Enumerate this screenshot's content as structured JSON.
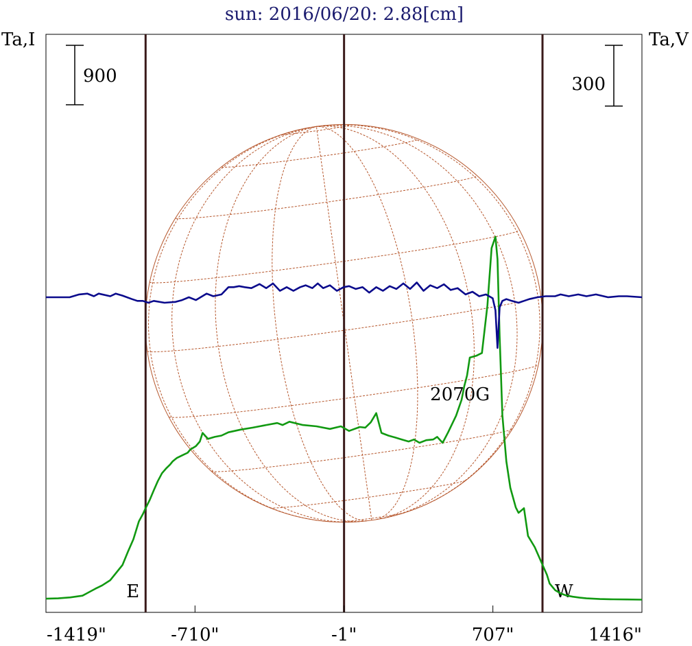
{
  "chart_data": {
    "type": "line",
    "title": "sun: 2016/06/20: 2.88[cm]",
    "left_axis_label": "Ta,I",
    "right_axis_label": "Ta,V",
    "x_unit": "arcsec",
    "x_tick_labels": [
      "-1419\"",
      "-710\"",
      "-1\"",
      "707\"",
      "1416\""
    ],
    "x_tick_values": [
      -1419,
      -710,
      -1,
      707,
      1416
    ],
    "xlim": [
      -1419,
      1416
    ],
    "scale_bars": [
      {
        "label": "900",
        "axis": "I",
        "value": 900
      },
      {
        "label": "300",
        "axis": "V",
        "value": 300
      }
    ],
    "vertical_markers": [
      {
        "label": "E",
        "x": -945
      },
      {
        "label": "",
        "x": -1
      },
      {
        "label": "W",
        "x": 943
      }
    ],
    "annotation": {
      "text": "2070G",
      "x": 800
    },
    "disk": {
      "center_x": -1,
      "radius": 945
    },
    "colors": {
      "stokes_I": "#119911",
      "stokes_V": "#0a0a8c",
      "markers": "#3a1a1a",
      "disk_grid": "#b5552a",
      "title": "#1a1a6e"
    },
    "series": [
      {
        "name": "",
        "key": "I",
        "x": [
          -1419,
          -1361,
          -1303,
          -1245,
          -1184,
          -1152,
          -1113,
          -1055,
          -1029,
          -1003,
          -977,
          -958,
          -945,
          -926,
          -906,
          -887,
          -867,
          -848,
          -829,
          -816,
          -797,
          -771,
          -745,
          -732,
          -706,
          -687,
          -674,
          -648,
          -616,
          -584,
          -551,
          -493,
          -435,
          -371,
          -319,
          -293,
          -261,
          -197,
          -132,
          -68,
          -16,
          23,
          74,
          100,
          126,
          152,
          177,
          210,
          242,
          274,
          306,
          332,
          358,
          390,
          423,
          442,
          468,
          494,
          532,
          558,
          571,
          584,
          597,
          629,
          655,
          681,
          701,
          719,
          729,
          739,
          752,
          771,
          790,
          816,
          829,
          855,
          874,
          906,
          945,
          964,
          977,
          1003,
          1029,
          1055,
          1087,
          1120,
          1152,
          1216,
          1281,
          1345,
          1416
        ],
        "y": [
          20,
          25,
          40,
          65,
          170,
          220,
          300,
          530,
          730,
          920,
          1190,
          1300,
          1390,
          1510,
          1660,
          1800,
          1920,
          1990,
          2050,
          2100,
          2150,
          2190,
          2230,
          2280,
          2330,
          2400,
          2530,
          2440,
          2470,
          2490,
          2540,
          2580,
          2610,
          2650,
          2680,
          2650,
          2700,
          2650,
          2630,
          2590,
          2630,
          2560,
          2620,
          2610,
          2690,
          2830,
          2530,
          2490,
          2460,
          2430,
          2400,
          2430,
          2380,
          2420,
          2430,
          2470,
          2380,
          2540,
          2790,
          3030,
          3240,
          3400,
          3670,
          3700,
          3740,
          4460,
          5330,
          5500,
          5160,
          4000,
          2800,
          2100,
          1700,
          1400,
          1320,
          1390,
          970,
          800,
          520,
          380,
          250,
          150,
          100,
          70,
          50,
          35,
          25,
          15,
          10,
          8,
          5
        ]
      },
      {
        "name": "",
        "key": "V",
        "x": [
          -1419,
          -1306,
          -1261,
          -1222,
          -1191,
          -1168,
          -1113,
          -1087,
          -1055,
          -1010,
          -984,
          -958,
          -932,
          -906,
          -855,
          -803,
          -771,
          -739,
          -706,
          -655,
          -623,
          -584,
          -551,
          -526,
          -500,
          -474,
          -442,
          -403,
          -371,
          -339,
          -306,
          -274,
          -242,
          -210,
          -184,
          -152,
          -126,
          -100,
          -68,
          -35,
          -3,
          23,
          55,
          87,
          119,
          152,
          184,
          216,
          248,
          281,
          313,
          345,
          377,
          409,
          442,
          474,
          506,
          539,
          577,
          610,
          642,
          674,
          706,
          719,
          729,
          739,
          752,
          771,
          797,
          829,
          855,
          880,
          919,
          958,
          1003,
          1029,
          1068,
          1113,
          1152,
          1197,
          1255,
          1306,
          1345,
          1416
        ],
        "y": [
          0,
          0,
          14,
          18,
          5,
          18,
          5,
          18,
          8,
          -9,
          -18,
          -18,
          -27,
          -18,
          -27,
          -23,
          -14,
          0,
          -14,
          18,
          5,
          14,
          50,
          50,
          55,
          50,
          45,
          65,
          45,
          68,
          32,
          50,
          32,
          50,
          59,
          45,
          68,
          45,
          59,
          32,
          50,
          55,
          41,
          50,
          23,
          50,
          32,
          55,
          41,
          68,
          41,
          73,
          32,
          59,
          45,
          64,
          36,
          45,
          14,
          27,
          5,
          14,
          -5,
          -64,
          -250,
          -50,
          -18,
          -9,
          -18,
          -27,
          -18,
          -9,
          0,
          5,
          5,
          14,
          5,
          14,
          5,
          14,
          0,
          5,
          5,
          0
        ]
      }
    ]
  }
}
